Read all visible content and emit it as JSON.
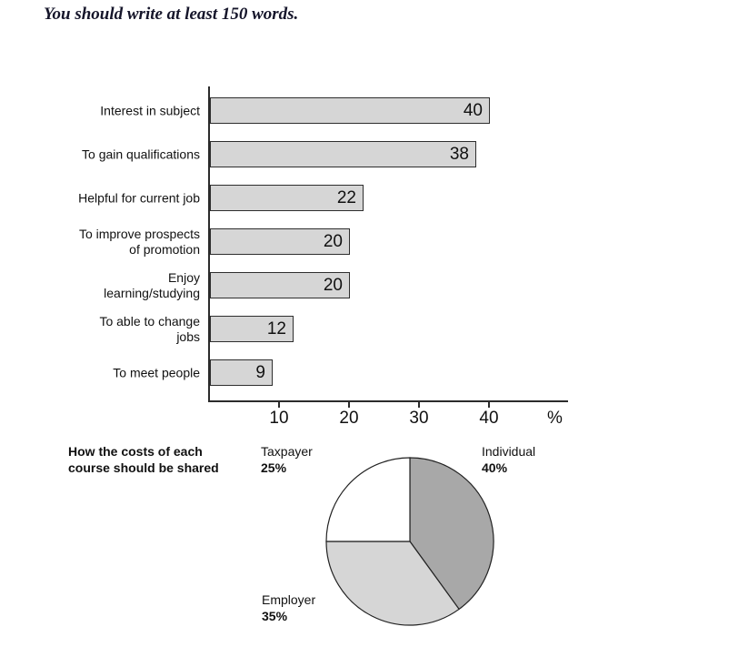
{
  "instruction": "You should write at least 150 words.",
  "chart_data": [
    {
      "type": "bar",
      "orientation": "horizontal",
      "categories": [
        "Interest in subject",
        "To gain qualifications",
        "Helpful for current job",
        "To improve prospects\nof promotion",
        "Enjoy\nlearning/studying",
        "To able to change\njobs",
        "To meet people"
      ],
      "values": [
        40,
        38,
        22,
        20,
        20,
        12,
        9
      ],
      "xticks": [
        10,
        20,
        30,
        40
      ],
      "xlim": [
        0,
        50
      ],
      "xlabel": "%",
      "grid": false,
      "bar_color": "#d6d6d6",
      "bar_border_color": "#2e2e2e"
    },
    {
      "type": "pie",
      "title": "How the costs of each\ncourse should be shared",
      "start": "top",
      "direction": "clockwise",
      "slices": [
        {
          "label": "Individual",
          "pct": "40%",
          "value": 40,
          "color": "#a8a8a8"
        },
        {
          "label": "Employer",
          "pct": "35%",
          "value": 35,
          "color": "#d6d6d6"
        },
        {
          "label": "Taxpayer",
          "pct": "25%",
          "value": 25,
          "color": "#ffffff"
        }
      ]
    }
  ]
}
